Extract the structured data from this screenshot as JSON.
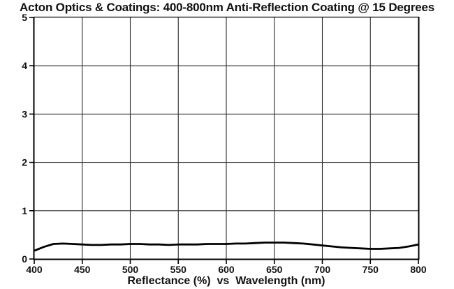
{
  "chart_data": {
    "type": "line",
    "title": "Acton Optics & Coatings: 400-800nm Anti-Reflection Coating @ 15 Degrees",
    "xlabel": "Reflectance (%)  vs  Wavelength (nm)",
    "ylabel": "",
    "xlim": [
      400,
      800
    ],
    "ylim": [
      0,
      5
    ],
    "x_ticks": [
      400,
      450,
      500,
      550,
      600,
      650,
      700,
      750,
      800
    ],
    "y_ticks": [
      0,
      1,
      2,
      3,
      4,
      5
    ],
    "grid": true,
    "legend": "none",
    "series": [
      {
        "name": "reflectance-curve",
        "color": "#000000",
        "x": [
          400,
          410,
          420,
          430,
          440,
          450,
          460,
          470,
          480,
          490,
          500,
          510,
          520,
          530,
          540,
          550,
          560,
          570,
          580,
          590,
          600,
          610,
          620,
          630,
          640,
          650,
          660,
          670,
          680,
          690,
          700,
          710,
          720,
          730,
          740,
          750,
          760,
          770,
          780,
          790,
          800
        ],
        "y": [
          0.17,
          0.25,
          0.31,
          0.32,
          0.31,
          0.3,
          0.29,
          0.29,
          0.3,
          0.3,
          0.31,
          0.31,
          0.3,
          0.3,
          0.29,
          0.3,
          0.3,
          0.3,
          0.31,
          0.31,
          0.31,
          0.32,
          0.32,
          0.33,
          0.34,
          0.34,
          0.34,
          0.33,
          0.32,
          0.3,
          0.28,
          0.26,
          0.24,
          0.23,
          0.22,
          0.21,
          0.21,
          0.22,
          0.23,
          0.26,
          0.3
        ]
      }
    ]
  },
  "colors": {
    "background": "#ffffff",
    "grid_line": "#2a2a2a",
    "axis_line": "#000000",
    "text": "#111111",
    "curve": "#000000"
  }
}
